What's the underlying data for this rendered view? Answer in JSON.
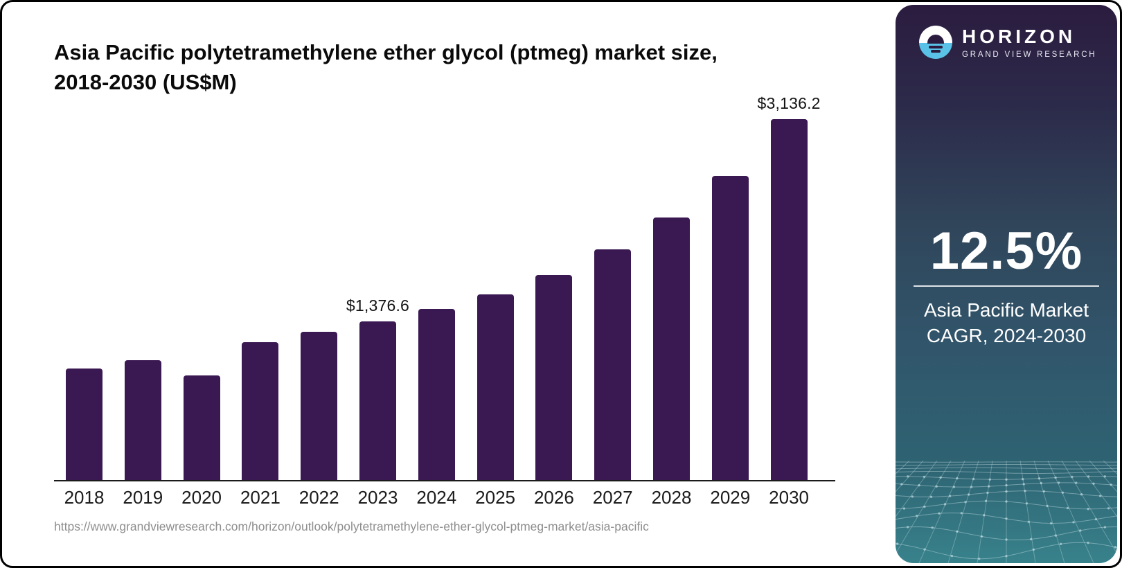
{
  "page": {
    "source_url": "https://www.grandviewresearch.com/horizon/outlook/polytetramethylene-ether-glycol-ptmeg-market/asia-pacific"
  },
  "sidebar": {
    "brand": {
      "name": "HORIZON",
      "tagline": "GRAND VIEW RESEARCH",
      "logo_icon": "horizon-sun-circle-icon",
      "logo_top_color": "#FFFFFF",
      "logo_bottom_color": "#5BC2E7"
    },
    "stat": {
      "value": "12.5%",
      "label_line1": "Asia Pacific Market",
      "label_line2": "CAGR, 2024-2030"
    },
    "gradient": [
      "#2B1C3F",
      "#2C2A4A",
      "#304459",
      "#31566C",
      "#2E6372",
      "#38828C"
    ]
  },
  "chart_data": {
    "type": "bar",
    "title": "Asia Pacific polytetramethylene ether glycol (ptmeg) market size, 2018-2030 (US$M)",
    "xlabel": "",
    "ylabel": "",
    "categories": [
      "2018",
      "2019",
      "2020",
      "2021",
      "2022",
      "2023",
      "2024",
      "2025",
      "2026",
      "2027",
      "2028",
      "2029",
      "2030"
    ],
    "values": [
      970,
      1045,
      910,
      1200,
      1290,
      1376.6,
      1485,
      1615,
      1780,
      2005,
      2280,
      2645,
      3136.2
    ],
    "data_labels": {
      "2023": "$1,376.6",
      "2030": "$3,136.2"
    },
    "bar_color": "#3A1852",
    "axis_color": "#1a1a1a",
    "ylim": [
      0,
      3300
    ],
    "grid": false,
    "legend": false
  }
}
